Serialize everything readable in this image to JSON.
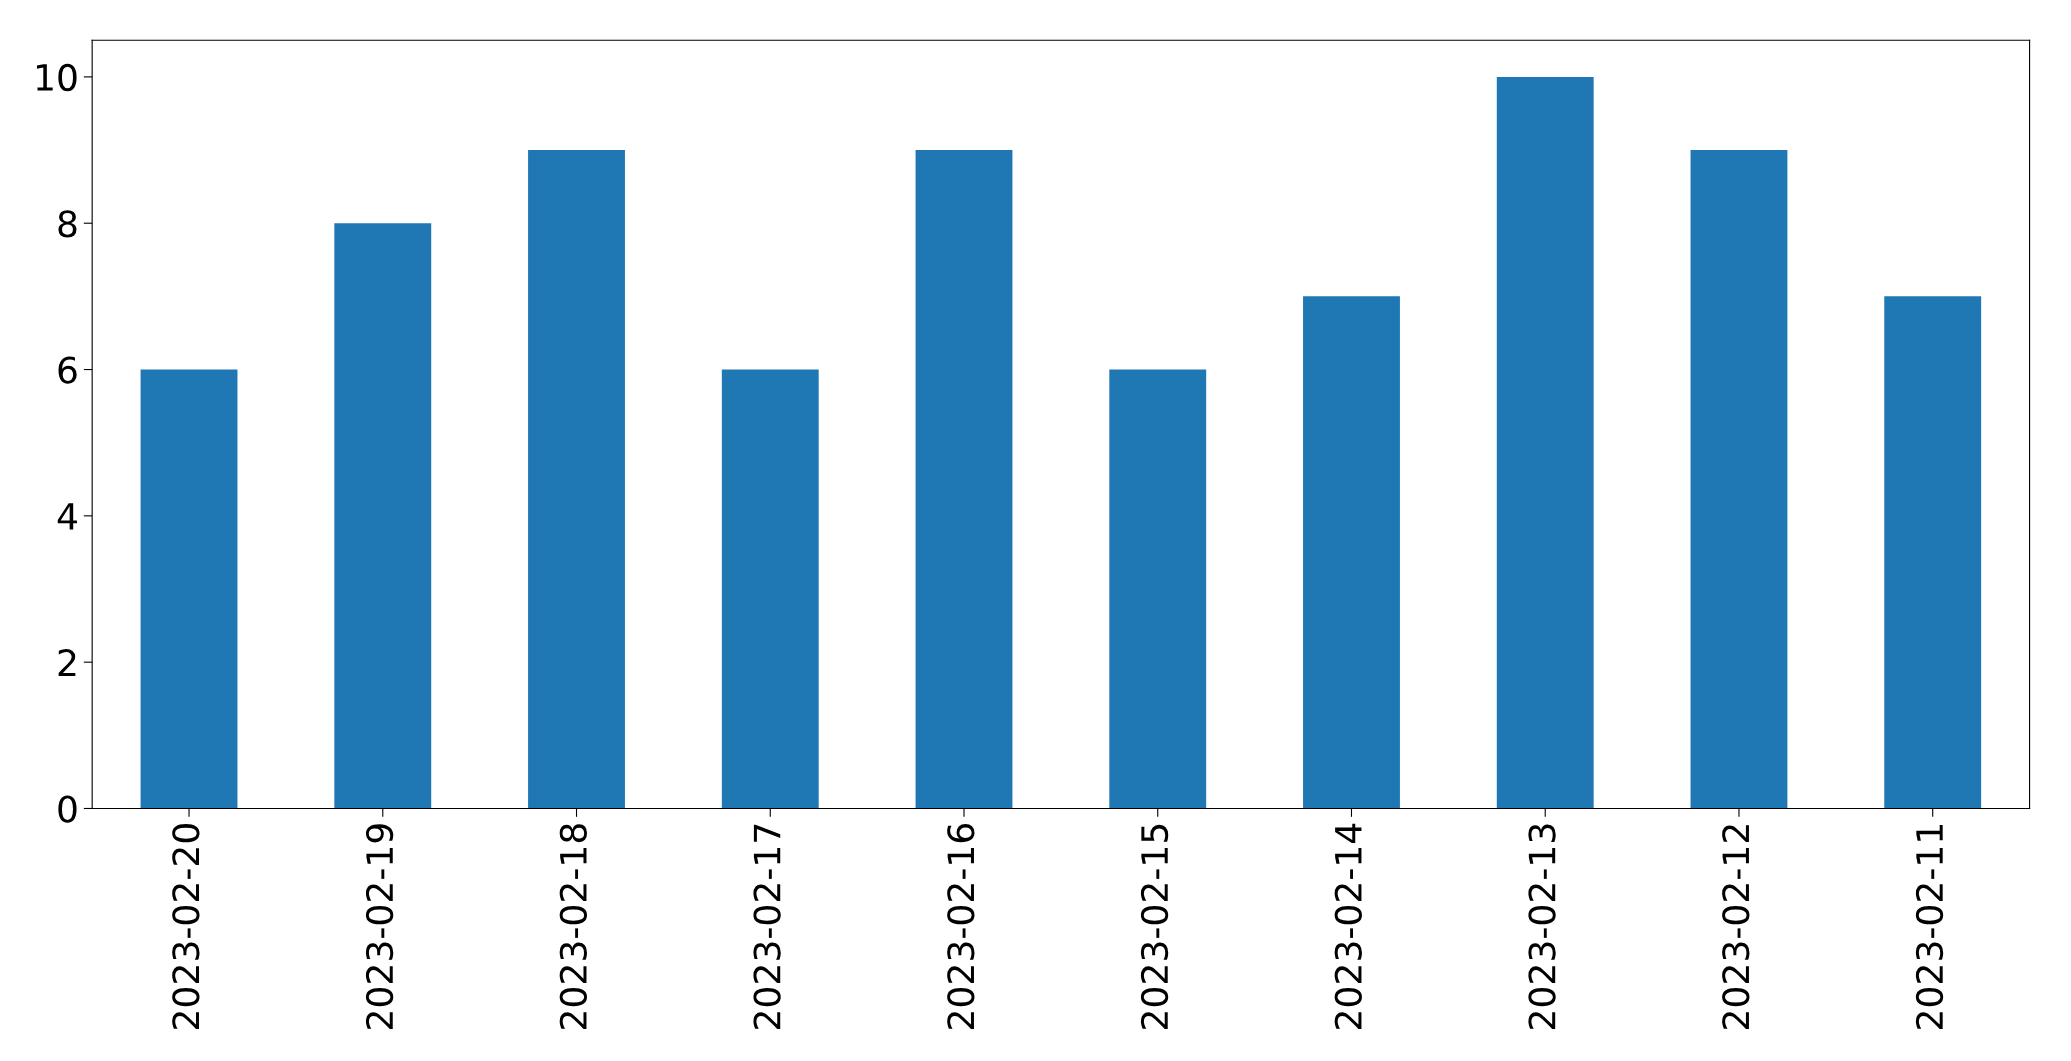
{
  "chart_data": {
    "type": "bar",
    "categories": [
      "2023-02-20",
      "2023-02-19",
      "2023-02-18",
      "2023-02-17",
      "2023-02-16",
      "2023-02-15",
      "2023-02-14",
      "2023-02-13",
      "2023-02-12",
      "2023-02-11"
    ],
    "values": [
      6,
      8,
      9,
      6,
      9,
      6,
      7,
      10,
      9,
      7
    ],
    "color": "#1f77b4",
    "ylim": [
      0,
      10.5
    ],
    "yticks": [
      0,
      2,
      4,
      6,
      8,
      10
    ],
    "grid": false,
    "legend": false
  }
}
